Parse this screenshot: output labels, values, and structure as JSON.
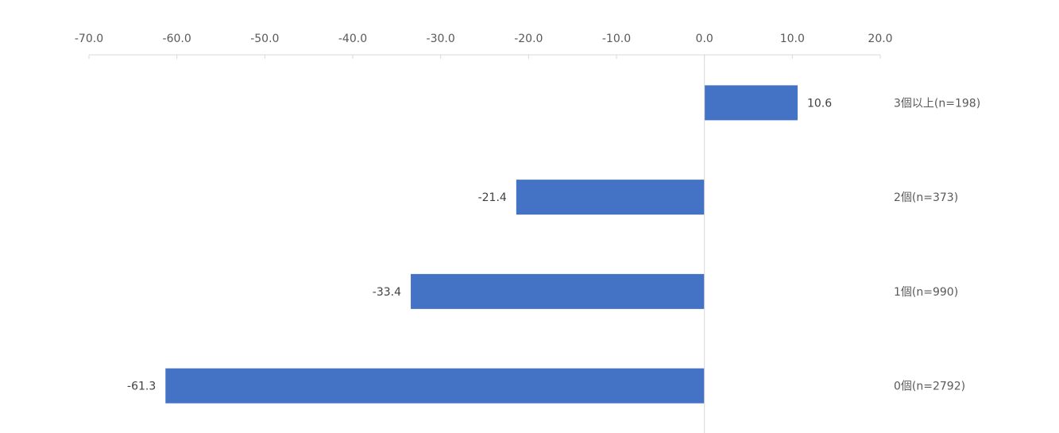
{
  "chart_data": {
    "type": "bar",
    "orientation": "horizontal",
    "categories": [
      "3個以上(n=198)",
      "2個(n=373)",
      "1個(n=990)",
      "0個(n=2792)"
    ],
    "values": [
      10.6,
      -21.4,
      -33.4,
      -61.3
    ],
    "value_labels": [
      "10.6",
      "-21.4",
      "-33.4",
      "-61.3"
    ],
    "xlim": [
      -70,
      20
    ],
    "xticks": [
      -70,
      -60,
      -50,
      -40,
      -30,
      -20,
      -10,
      0,
      10,
      20
    ],
    "xtick_labels": [
      "-70.0",
      "-60.0",
      "-50.0",
      "-40.0",
      "-30.0",
      "-20.0",
      "-10.0",
      "0.0",
      "10.0",
      "20.0"
    ],
    "x_axis_position": "top",
    "category_label_position": "right",
    "grid": false,
    "bar_color": "#4472C4",
    "title": "",
    "xlabel": "",
    "ylabel": ""
  }
}
